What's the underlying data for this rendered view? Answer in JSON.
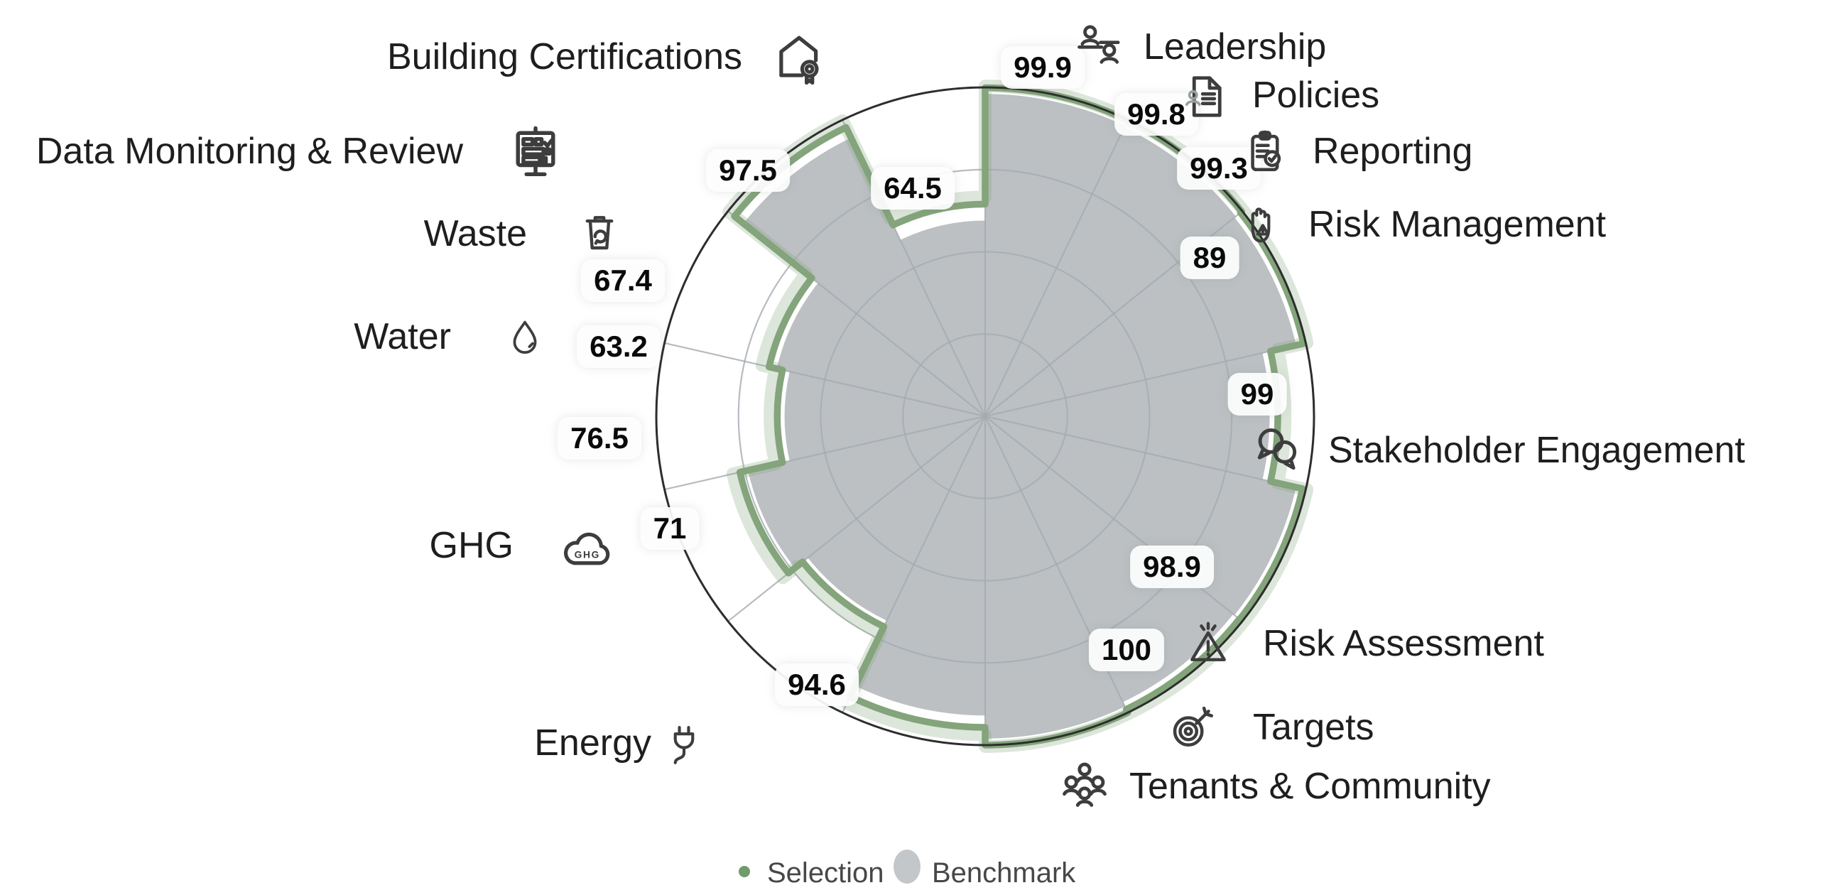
{
  "chart_data": {
    "type": "radar",
    "variant": "stepped-polar-sectors",
    "direction": "clockwise-from-top",
    "rlim": [
      0,
      100
    ],
    "grid_rings_pct": [
      25,
      50,
      75,
      100
    ],
    "grid": "on",
    "legend_position": "bottom-center",
    "categories": [
      "Leadership",
      "Policies",
      "Reporting",
      "Risk Management",
      "Stakeholder Engagement",
      "Risk Assessment",
      "Targets",
      "Tenants & Community",
      "Energy",
      "GHG",
      "Water",
      "Waste",
      "Data Monitoring & Review",
      "Building Certifications"
    ],
    "value_labels": [
      "99.9",
      "99.8",
      "99.3",
      "89",
      "99",
      "98.9",
      "100",
      "94.6",
      "71",
      "76.5",
      "63.2",
      "67.4",
      "97.5",
      "64.5"
    ],
    "series": [
      {
        "name": "Selection",
        "color": "#84a47c",
        "values": [
          99.9,
          99.8,
          99.3,
          89,
          99,
          98.9,
          100,
          94.6,
          71,
          76.5,
          63.2,
          67.4,
          97.5,
          64.5
        ]
      },
      {
        "name": "Benchmark",
        "color": "#bcc0c3",
        "values": [
          98,
          97.5,
          97,
          86.5,
          97,
          96.5,
          98,
          91,
          69,
          74,
          61,
          65,
          94,
          59.5
        ]
      }
    ]
  },
  "categories": [
    {
      "id": "leadership",
      "label": "Leadership",
      "value": "99.9",
      "icon": "org-people-icon"
    },
    {
      "id": "policies",
      "label": "Policies",
      "value": "99.8",
      "icon": "policy-document-icon"
    },
    {
      "id": "reporting",
      "label": "Reporting",
      "value": "99.3",
      "icon": "report-clipboard-check-icon"
    },
    {
      "id": "risk-management",
      "label": "Risk Management",
      "value": "89",
      "icon": "stop-hand-warning-icon"
    },
    {
      "id": "stakeholder-engagement",
      "label": "Stakeholder Engagement",
      "value": "99",
      "icon": "speech-bubbles-icon"
    },
    {
      "id": "risk-assessment",
      "label": "Risk Assessment",
      "value": "98.9",
      "icon": "warning-triangle-icon"
    },
    {
      "id": "targets",
      "label": "Targets",
      "value": "100",
      "icon": "target-dart-icon"
    },
    {
      "id": "tenants-community",
      "label": "Tenants & Community",
      "value": "94.6",
      "icon": "people-group-icon"
    },
    {
      "id": "energy",
      "label": "Energy",
      "value": "71",
      "icon": "power-plug-icon"
    },
    {
      "id": "ghg",
      "label": "GHG",
      "value": "76.5",
      "icon": "ghg-cloud-icon"
    },
    {
      "id": "water",
      "label": "Water",
      "value": "63.2",
      "icon": "water-drop-icon"
    },
    {
      "id": "waste",
      "label": "Waste",
      "value": "67.4",
      "icon": "recycle-bin-icon"
    },
    {
      "id": "data-monitoring-review",
      "label": "Data Monitoring & Review",
      "value": "97.5",
      "icon": "presentation-checklist-icon"
    },
    {
      "id": "building-certifications",
      "label": "Building Certifications",
      "value": "64.5",
      "icon": "house-certificate-icon"
    }
  ],
  "legend": {
    "items": [
      {
        "label": "Selection",
        "marker": "green-dot",
        "color": "#6f9c6a"
      },
      {
        "label": "Benchmark",
        "marker": "gray-ellipse",
        "color": "#c3c7ca"
      }
    ]
  },
  "colors": {
    "selection_line": "#84a47c",
    "selection_halo": "rgba(132,164,124,0.28)",
    "benchmark_fill": "#bcc0c3",
    "grid_line": "#a4abb1",
    "outer_ring": "#2d2d2d",
    "value_text": "#0a0a0a",
    "label_text": "#1e1e1e"
  }
}
